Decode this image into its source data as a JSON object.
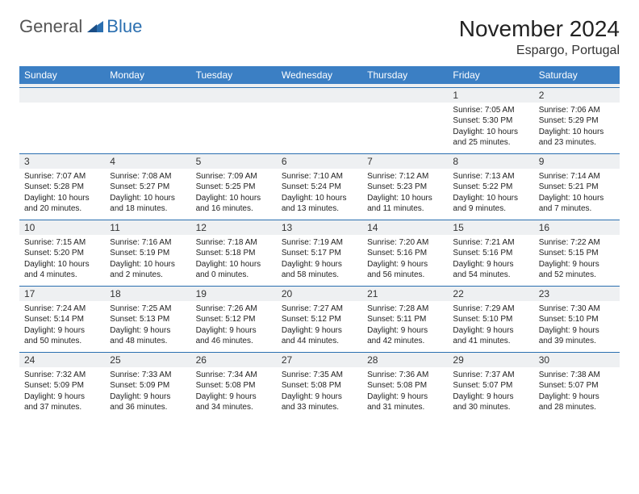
{
  "brand": {
    "general": "General",
    "blue": "Blue",
    "color": "#2b6fb0"
  },
  "header": {
    "title": "November 2024",
    "location": "Espargo, Portugal"
  },
  "columns": [
    "Sunday",
    "Monday",
    "Tuesday",
    "Wednesday",
    "Thursday",
    "Friday",
    "Saturday"
  ],
  "colors": {
    "header_bg": "#3b7fc4",
    "header_fg": "#ffffff",
    "daynum_bg": "#eef0f2",
    "border": "#2b6fb0"
  },
  "weeks": [
    [
      {
        "n": "",
        "lines": []
      },
      {
        "n": "",
        "lines": []
      },
      {
        "n": "",
        "lines": []
      },
      {
        "n": "",
        "lines": []
      },
      {
        "n": "",
        "lines": []
      },
      {
        "n": "1",
        "lines": [
          "Sunrise: 7:05 AM",
          "Sunset: 5:30 PM",
          "Daylight: 10 hours",
          "and 25 minutes."
        ]
      },
      {
        "n": "2",
        "lines": [
          "Sunrise: 7:06 AM",
          "Sunset: 5:29 PM",
          "Daylight: 10 hours",
          "and 23 minutes."
        ]
      }
    ],
    [
      {
        "n": "3",
        "lines": [
          "Sunrise: 7:07 AM",
          "Sunset: 5:28 PM",
          "Daylight: 10 hours",
          "and 20 minutes."
        ]
      },
      {
        "n": "4",
        "lines": [
          "Sunrise: 7:08 AM",
          "Sunset: 5:27 PM",
          "Daylight: 10 hours",
          "and 18 minutes."
        ]
      },
      {
        "n": "5",
        "lines": [
          "Sunrise: 7:09 AM",
          "Sunset: 5:25 PM",
          "Daylight: 10 hours",
          "and 16 minutes."
        ]
      },
      {
        "n": "6",
        "lines": [
          "Sunrise: 7:10 AM",
          "Sunset: 5:24 PM",
          "Daylight: 10 hours",
          "and 13 minutes."
        ]
      },
      {
        "n": "7",
        "lines": [
          "Sunrise: 7:12 AM",
          "Sunset: 5:23 PM",
          "Daylight: 10 hours",
          "and 11 minutes."
        ]
      },
      {
        "n": "8",
        "lines": [
          "Sunrise: 7:13 AM",
          "Sunset: 5:22 PM",
          "Daylight: 10 hours",
          "and 9 minutes."
        ]
      },
      {
        "n": "9",
        "lines": [
          "Sunrise: 7:14 AM",
          "Sunset: 5:21 PM",
          "Daylight: 10 hours",
          "and 7 minutes."
        ]
      }
    ],
    [
      {
        "n": "10",
        "lines": [
          "Sunrise: 7:15 AM",
          "Sunset: 5:20 PM",
          "Daylight: 10 hours",
          "and 4 minutes."
        ]
      },
      {
        "n": "11",
        "lines": [
          "Sunrise: 7:16 AM",
          "Sunset: 5:19 PM",
          "Daylight: 10 hours",
          "and 2 minutes."
        ]
      },
      {
        "n": "12",
        "lines": [
          "Sunrise: 7:18 AM",
          "Sunset: 5:18 PM",
          "Daylight: 10 hours",
          "and 0 minutes."
        ]
      },
      {
        "n": "13",
        "lines": [
          "Sunrise: 7:19 AM",
          "Sunset: 5:17 PM",
          "Daylight: 9 hours",
          "and 58 minutes."
        ]
      },
      {
        "n": "14",
        "lines": [
          "Sunrise: 7:20 AM",
          "Sunset: 5:16 PM",
          "Daylight: 9 hours",
          "and 56 minutes."
        ]
      },
      {
        "n": "15",
        "lines": [
          "Sunrise: 7:21 AM",
          "Sunset: 5:16 PM",
          "Daylight: 9 hours",
          "and 54 minutes."
        ]
      },
      {
        "n": "16",
        "lines": [
          "Sunrise: 7:22 AM",
          "Sunset: 5:15 PM",
          "Daylight: 9 hours",
          "and 52 minutes."
        ]
      }
    ],
    [
      {
        "n": "17",
        "lines": [
          "Sunrise: 7:24 AM",
          "Sunset: 5:14 PM",
          "Daylight: 9 hours",
          "and 50 minutes."
        ]
      },
      {
        "n": "18",
        "lines": [
          "Sunrise: 7:25 AM",
          "Sunset: 5:13 PM",
          "Daylight: 9 hours",
          "and 48 minutes."
        ]
      },
      {
        "n": "19",
        "lines": [
          "Sunrise: 7:26 AM",
          "Sunset: 5:12 PM",
          "Daylight: 9 hours",
          "and 46 minutes."
        ]
      },
      {
        "n": "20",
        "lines": [
          "Sunrise: 7:27 AM",
          "Sunset: 5:12 PM",
          "Daylight: 9 hours",
          "and 44 minutes."
        ]
      },
      {
        "n": "21",
        "lines": [
          "Sunrise: 7:28 AM",
          "Sunset: 5:11 PM",
          "Daylight: 9 hours",
          "and 42 minutes."
        ]
      },
      {
        "n": "22",
        "lines": [
          "Sunrise: 7:29 AM",
          "Sunset: 5:10 PM",
          "Daylight: 9 hours",
          "and 41 minutes."
        ]
      },
      {
        "n": "23",
        "lines": [
          "Sunrise: 7:30 AM",
          "Sunset: 5:10 PM",
          "Daylight: 9 hours",
          "and 39 minutes."
        ]
      }
    ],
    [
      {
        "n": "24",
        "lines": [
          "Sunrise: 7:32 AM",
          "Sunset: 5:09 PM",
          "Daylight: 9 hours",
          "and 37 minutes."
        ]
      },
      {
        "n": "25",
        "lines": [
          "Sunrise: 7:33 AM",
          "Sunset: 5:09 PM",
          "Daylight: 9 hours",
          "and 36 minutes."
        ]
      },
      {
        "n": "26",
        "lines": [
          "Sunrise: 7:34 AM",
          "Sunset: 5:08 PM",
          "Daylight: 9 hours",
          "and 34 minutes."
        ]
      },
      {
        "n": "27",
        "lines": [
          "Sunrise: 7:35 AM",
          "Sunset: 5:08 PM",
          "Daylight: 9 hours",
          "and 33 minutes."
        ]
      },
      {
        "n": "28",
        "lines": [
          "Sunrise: 7:36 AM",
          "Sunset: 5:08 PM",
          "Daylight: 9 hours",
          "and 31 minutes."
        ]
      },
      {
        "n": "29",
        "lines": [
          "Sunrise: 7:37 AM",
          "Sunset: 5:07 PM",
          "Daylight: 9 hours",
          "and 30 minutes."
        ]
      },
      {
        "n": "30",
        "lines": [
          "Sunrise: 7:38 AM",
          "Sunset: 5:07 PM",
          "Daylight: 9 hours",
          "and 28 minutes."
        ]
      }
    ]
  ]
}
